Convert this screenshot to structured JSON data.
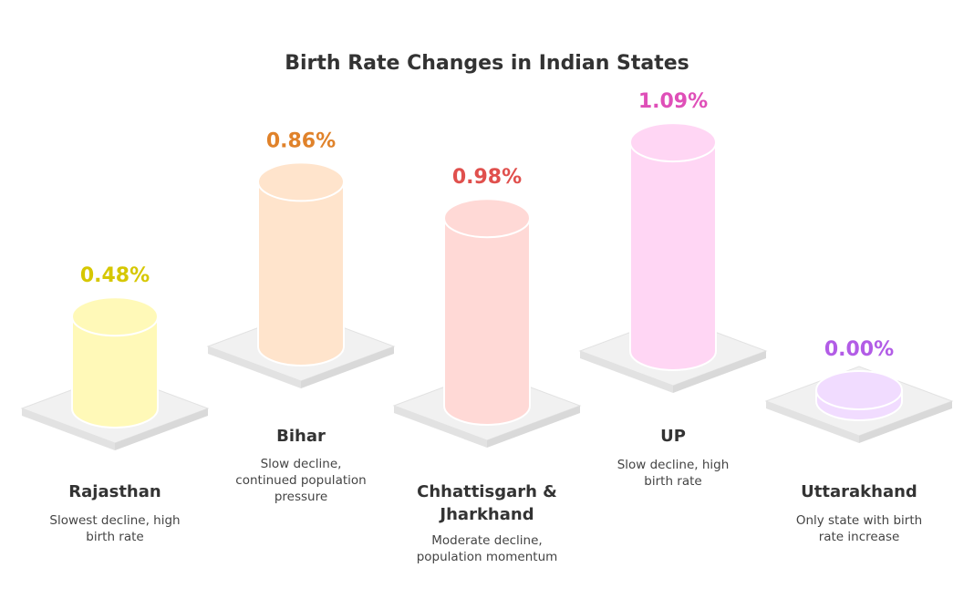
{
  "chart_data": {
    "type": "bar",
    "title": "Birth Rate Changes in Indian States",
    "unit": "%",
    "categories": [
      "Rajasthan",
      "Bihar",
      "Chhattisgarh & Jharkhand",
      "UP",
      "Uttarakhand"
    ],
    "values": [
      0.48,
      0.86,
      0.98,
      1.09,
      0.0
    ],
    "value_labels": [
      "0.48%",
      "0.86%",
      "0.98%",
      "1.09%",
      "0.00%"
    ],
    "descriptions": [
      "Slowest decline, high birth rate",
      "Slow decline, continued population pressure",
      "Moderate decline, population momentum",
      "Slow decline, high birth rate",
      "Only state with birth rate increase"
    ],
    "colors": {
      "fills": [
        "#fff9b8",
        "#ffe4cc",
        "#ffd9d6",
        "#ffd6f4",
        "#f1dcff"
      ],
      "value_text": [
        "#d6c700",
        "#e0822a",
        "#e0504d",
        "#df4fb8",
        "#b25ce6"
      ],
      "platform": "#ececec"
    }
  }
}
